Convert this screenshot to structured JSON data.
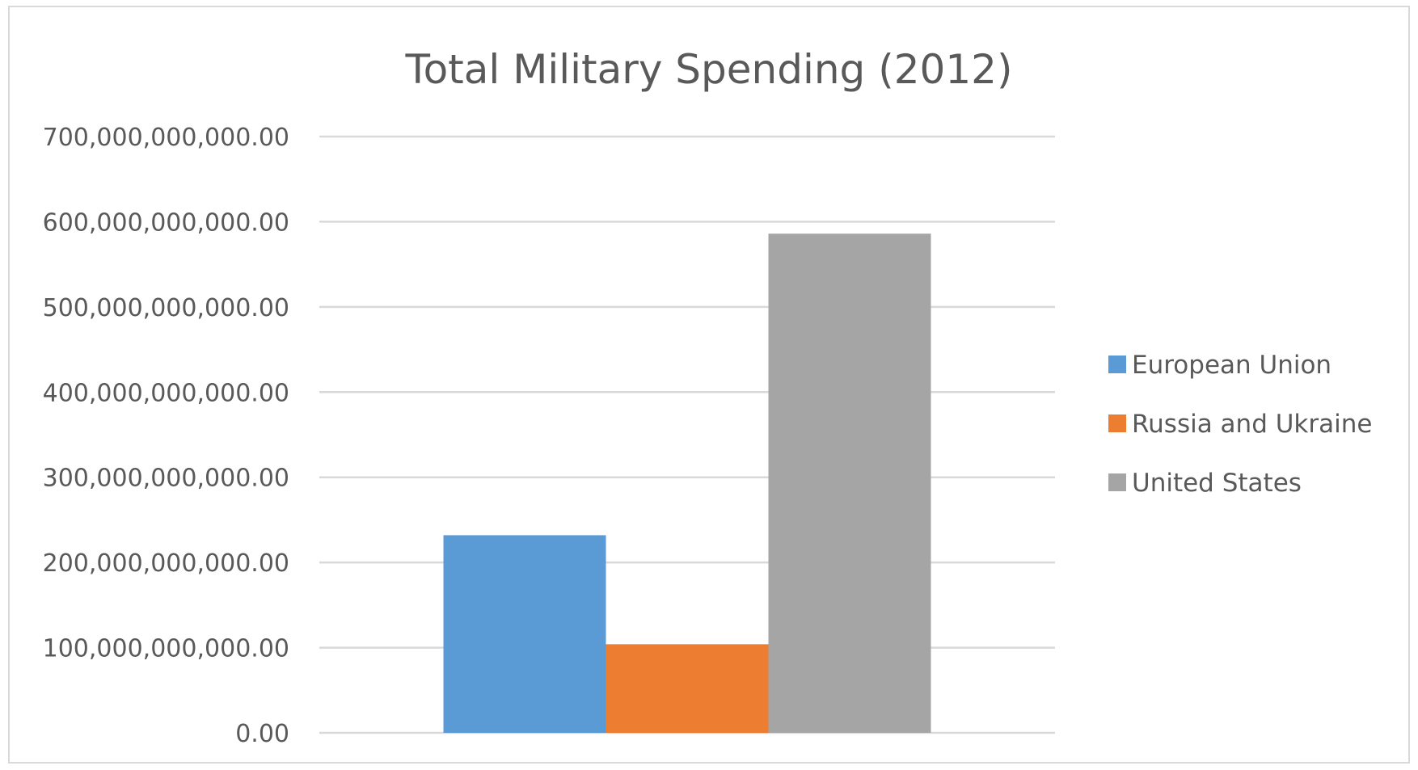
{
  "chart_data": {
    "type": "bar",
    "title": "Total Military Spending (2012)",
    "xlabel": "",
    "ylabel": "",
    "categories": [
      ""
    ],
    "series": [
      {
        "name": "European Union",
        "values": [
          232000000000
        ],
        "color": "#5b9bd5"
      },
      {
        "name": "Russia and Ukraine",
        "values": [
          104000000000
        ],
        "color": "#ed7d31"
      },
      {
        "name": "United States",
        "values": [
          586000000000
        ],
        "color": "#a5a5a5"
      }
    ],
    "ylim": [
      0,
      700000000000
    ],
    "yticks": [
      0,
      100000000000,
      200000000000,
      300000000000,
      400000000000,
      500000000000,
      600000000000,
      700000000000
    ],
    "ytick_labels": [
      "0.00",
      "100,000,000,000.00",
      "200,000,000,000.00",
      "300,000,000,000.00",
      "400,000,000,000.00",
      "500,000,000,000.00",
      "600,000,000,000.00",
      "700,000,000,000.00"
    ],
    "grid": true,
    "legend_position": "right"
  }
}
